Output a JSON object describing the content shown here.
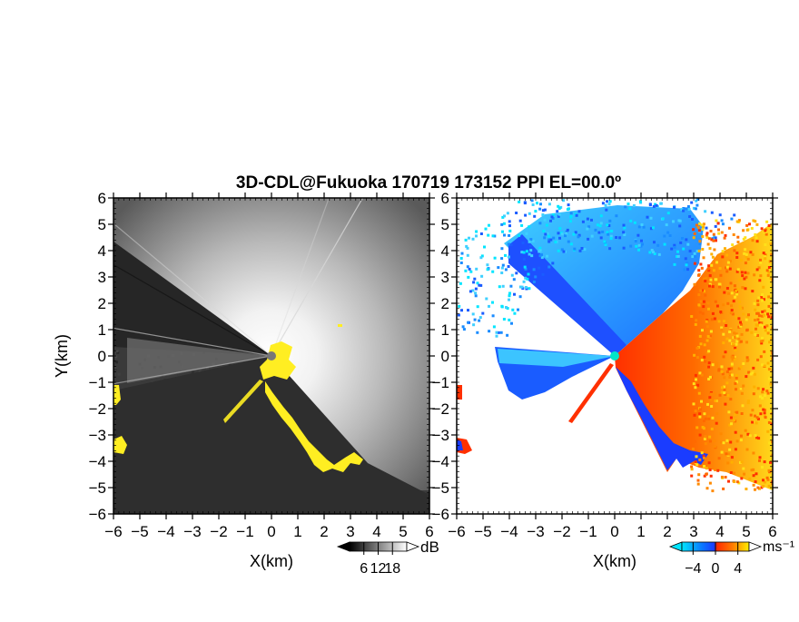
{
  "title": "3D-CDL@Fukuoka 170719 173152 PPI EL=00.0º",
  "colors": {
    "blind_sector": "#262626",
    "zero_velocity": "#ffee22",
    "noise_sector": "#303030"
  },
  "chart_data": [
    {
      "type": "heatmap",
      "name_hint": "snr-panel",
      "xlabel": "X(km)",
      "ylabel": "Y(km)",
      "xlim": [
        -6,
        6
      ],
      "ylim": [
        -6,
        6
      ],
      "xticks": [
        -6,
        -5,
        -4,
        -3,
        -2,
        -1,
        0,
        1,
        2,
        3,
        4,
        5,
        6
      ],
      "yticks": [
        -6,
        -5,
        -4,
        -3,
        -2,
        -1,
        0,
        1,
        2,
        3,
        4,
        5,
        6
      ],
      "grid": false,
      "colorbar": {
        "unit": "dB",
        "ticks": [
          6,
          12,
          18
        ],
        "range": [
          0,
          24
        ],
        "colors": [
          "#000000",
          "#ffffff"
        ]
      }
    },
    {
      "type": "heatmap",
      "name_hint": "velocity-panel",
      "xlabel": "X(km)",
      "ylabel": "",
      "xlim": [
        -6,
        6
      ],
      "ylim": [
        -6,
        6
      ],
      "xticks": [
        -6,
        -5,
        -4,
        -3,
        -2,
        -1,
        0,
        1,
        2,
        3,
        4,
        5,
        6
      ],
      "yticks": [
        -6,
        -5,
        -4,
        -3,
        -2,
        -1,
        0,
        1,
        2,
        3,
        4,
        5,
        6
      ],
      "grid": false,
      "colorbar": {
        "unit": "ms⁻¹",
        "ticks": [
          -4,
          0,
          4
        ],
        "range": [
          -6,
          6
        ],
        "colors": [
          "#00e5ff",
          "#0a78ff",
          "#1a3cff",
          "#ff2a00",
          "#ff6a00",
          "#ffee00"
        ]
      }
    }
  ]
}
